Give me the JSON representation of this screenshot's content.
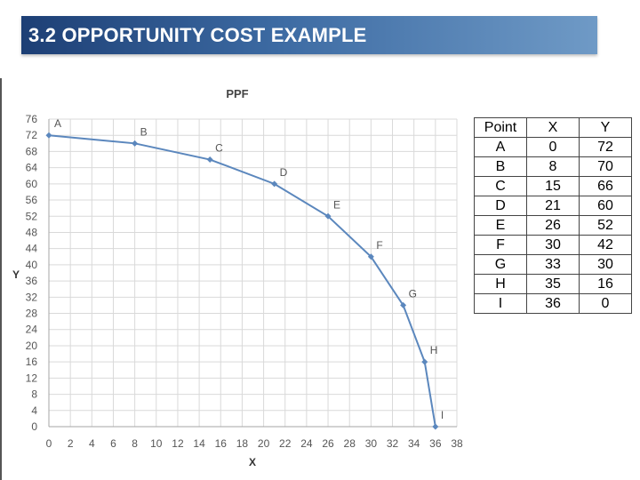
{
  "slide": {
    "title": "3.2  OPPORTUNITY COST EXAMPLE"
  },
  "chart_data": {
    "type": "line",
    "title": "PPF",
    "xlabel": "X",
    "ylabel": "Y",
    "xlim": [
      0,
      38
    ],
    "ylim": [
      0,
      76
    ],
    "x_ticks": [
      0,
      2,
      4,
      6,
      8,
      10,
      12,
      14,
      16,
      18,
      20,
      22,
      24,
      26,
      28,
      30,
      32,
      34,
      36,
      38
    ],
    "y_ticks": [
      0,
      4,
      8,
      12,
      16,
      20,
      24,
      28,
      32,
      36,
      40,
      44,
      48,
      52,
      56,
      60,
      64,
      68,
      72,
      76
    ],
    "grid": true,
    "line_color": "#5b87bd",
    "series": [
      {
        "points": [
          {
            "label": "A",
            "x": 0,
            "y": 72
          },
          {
            "label": "B",
            "x": 8,
            "y": 70
          },
          {
            "label": "C",
            "x": 15,
            "y": 66
          },
          {
            "label": "D",
            "x": 21,
            "y": 60
          },
          {
            "label": "E",
            "x": 26,
            "y": 52
          },
          {
            "label": "F",
            "x": 30,
            "y": 42
          },
          {
            "label": "G",
            "x": 33,
            "y": 30
          },
          {
            "label": "H",
            "x": 35,
            "y": 16
          },
          {
            "label": "I",
            "x": 36,
            "y": 0
          }
        ]
      }
    ]
  },
  "table": {
    "headers": [
      "Point",
      "X",
      "Y"
    ],
    "rows": [
      [
        "A",
        "0",
        "72"
      ],
      [
        "B",
        "8",
        "70"
      ],
      [
        "C",
        "15",
        "66"
      ],
      [
        "D",
        "21",
        "60"
      ],
      [
        "E",
        "26",
        "52"
      ],
      [
        "F",
        "30",
        "42"
      ],
      [
        "G",
        "33",
        "30"
      ],
      [
        "H",
        "35",
        "16"
      ],
      [
        "I",
        "36",
        "0"
      ]
    ]
  }
}
